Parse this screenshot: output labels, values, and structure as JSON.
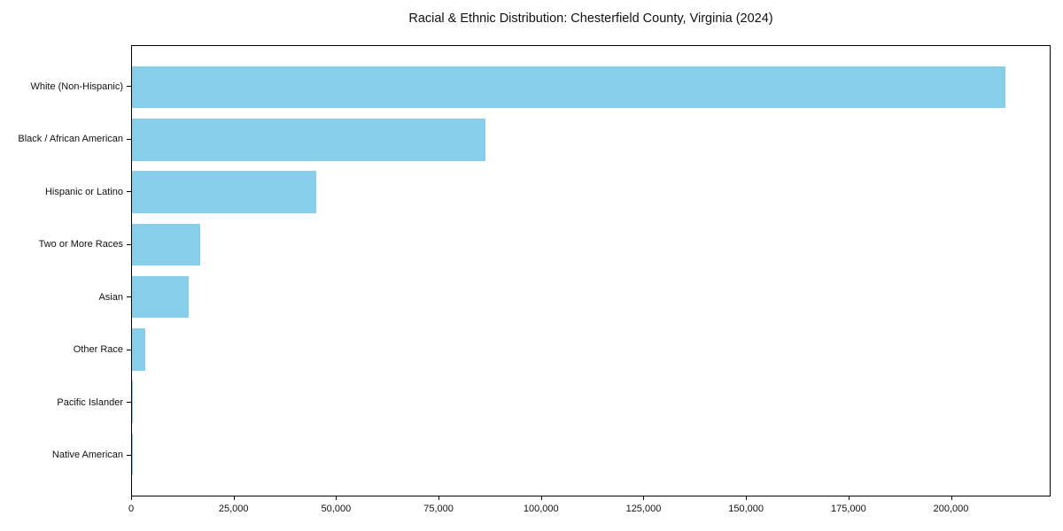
{
  "title": "Racial & Ethnic Distribution: Chesterfield County, Virginia (2024)",
  "chart_data": {
    "type": "bar",
    "orientation": "horizontal",
    "title": "Racial & Ethnic Distribution: Chesterfield County, Virginia (2024)",
    "xlabel": "",
    "ylabel": "",
    "categories": [
      "White (Non-Hispanic)",
      "Black / African American",
      "Hispanic or Latino",
      "Two or More Races",
      "Asian",
      "Other Race",
      "Pacific Islander",
      "Native American"
    ],
    "values": [
      213500,
      86400,
      45000,
      16600,
      13800,
      3200,
      300,
      200
    ],
    "xlim": [
      0,
      224300
    ],
    "x_ticks": [
      0,
      25000,
      50000,
      75000,
      100000,
      125000,
      150000,
      175000,
      200000
    ],
    "x_tick_labels": [
      "0",
      "25,000",
      "50,000",
      "75,000",
      "100,000",
      "125,000",
      "150,000",
      "175,000",
      "200,000"
    ],
    "bar_color": "#87CEEB",
    "grid": false,
    "legend": null
  },
  "colors": {
    "bar": "#87CEEB",
    "text": "#111111",
    "spine": "#000000",
    "background": "#ffffff"
  }
}
